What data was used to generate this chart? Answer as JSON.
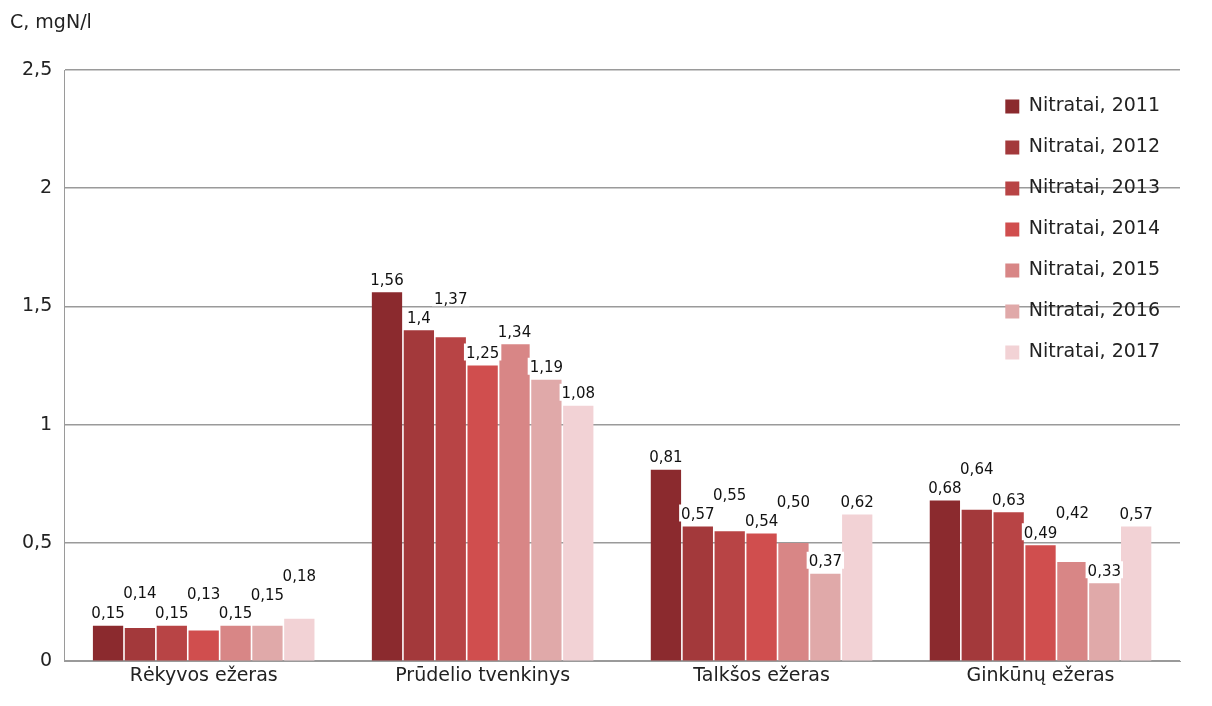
{
  "chart_data": {
    "type": "bar",
    "ylabel": "C, mgN/l",
    "categories": [
      "Rėkyvos ežeras",
      "Prūdelio tvenkinys",
      "Talkšos ežeras",
      "Ginkūnų ežeras"
    ],
    "series": [
      {
        "name": "Nitratai, 2011",
        "color": "#8b2a2e",
        "values": [
          0.15,
          1.56,
          0.81,
          0.68
        ],
        "value_labels": [
          "0,15",
          "1,56",
          "0,81",
          "0,68"
        ]
      },
      {
        "name": "Nitratai, 2012",
        "color": "#a3393b",
        "values": [
          0.14,
          1.4,
          0.57,
          0.64
        ],
        "value_labels": [
          "0,14",
          "1,4",
          "0,57",
          "0,64"
        ]
      },
      {
        "name": "Nitratai, 2013",
        "color": "#b84445",
        "values": [
          0.15,
          1.37,
          0.55,
          0.63
        ],
        "value_labels": [
          "0,15",
          "1,37",
          "0,55",
          "0,63"
        ]
      },
      {
        "name": "Nitratai, 2014",
        "color": "#d04e4e",
        "values": [
          0.13,
          1.25,
          0.54,
          0.49
        ],
        "value_labels": [
          "0,13",
          "1,25",
          "0,54",
          "0,49"
        ]
      },
      {
        "name": "Nitratai, 2015",
        "color": "#d88686",
        "values": [
          0.15,
          1.34,
          0.5,
          0.42
        ],
        "value_labels": [
          "0,15",
          "1,34",
          "0,50",
          "0,42"
        ]
      },
      {
        "name": "Nitratai, 2016",
        "color": "#e0a9a9",
        "values": [
          0.15,
          1.19,
          0.37,
          0.33
        ],
        "value_labels": [
          "0,15",
          "1,19",
          "0,37",
          "0,33"
        ]
      },
      {
        "name": "Nitratai, 2017",
        "color": "#f2d2d5",
        "values": [
          0.18,
          1.08,
          0.62,
          0.57
        ],
        "value_labels": [
          "0,18",
          "1,08",
          "0,62",
          "0,57"
        ]
      }
    ],
    "ylim": [
      0,
      2.5
    ],
    "yticks": [
      {
        "value": 0,
        "label": "0"
      },
      {
        "value": 0.5,
        "label": "0,5"
      },
      {
        "value": 1,
        "label": "1"
      },
      {
        "value": 1.5,
        "label": "1,5"
      },
      {
        "value": 2,
        "label": "2"
      },
      {
        "value": 2.5,
        "label": "2,5"
      }
    ],
    "grid": "y",
    "legend": "top right"
  }
}
